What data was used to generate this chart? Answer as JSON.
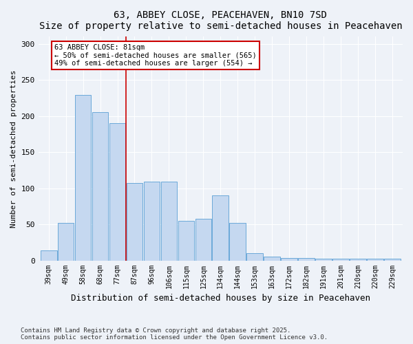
{
  "title": "63, ABBEY CLOSE, PEACEHAVEN, BN10 7SD",
  "subtitle": "Size of property relative to semi-detached houses in Peacehaven",
  "xlabel": "Distribution of semi-detached houses by size in Peacehaven",
  "ylabel": "Number of semi-detached properties",
  "categories": [
    "39sqm",
    "49sqm",
    "58sqm",
    "68sqm",
    "77sqm",
    "87sqm",
    "96sqm",
    "106sqm",
    "115sqm",
    "125sqm",
    "134sqm",
    "144sqm",
    "153sqm",
    "163sqm",
    "172sqm",
    "182sqm",
    "191sqm",
    "201sqm",
    "210sqm",
    "220sqm",
    "229sqm"
  ],
  "values": [
    14,
    52,
    229,
    205,
    190,
    107,
    109,
    109,
    55,
    58,
    90,
    52,
    10,
    5,
    3,
    3,
    2,
    2,
    2,
    2,
    2
  ],
  "bar_color": "#c5d8f0",
  "bar_edge_color": "#5a9fd4",
  "annotation_text_title": "63 ABBEY CLOSE: 81sqm",
  "annotation_text_line1": "← 50% of semi-detached houses are smaller (565)",
  "annotation_text_line2": "49% of semi-detached houses are larger (554) →",
  "footer1": "Contains HM Land Registry data © Crown copyright and database right 2025.",
  "footer2": "Contains public sector information licensed under the Open Government Licence v3.0.",
  "ylim": [
    0,
    310
  ],
  "yticks": [
    0,
    50,
    100,
    150,
    200,
    250,
    300
  ],
  "background_color": "#eef2f8",
  "plot_bg_color": "#eef2f8",
  "annotation_box_color": "#ffffff",
  "annotation_box_edge": "#cc0000",
  "vline_color": "#cc0000",
  "vline_x": 4.5
}
